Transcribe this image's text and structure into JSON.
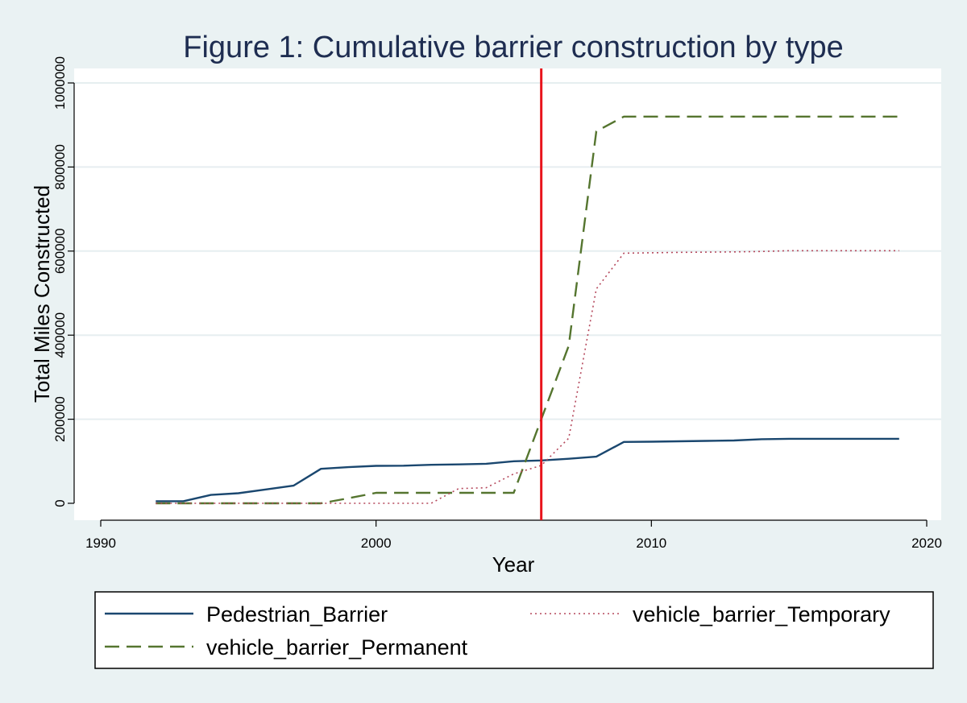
{
  "chart_data": {
    "type": "line",
    "title": "Figure 1: Cumulative barrier construction by type",
    "xlabel": "Year",
    "ylabel": "Total Miles Constructed",
    "xlim": [
      1990,
      2020
    ],
    "ylim": [
      0,
      1000000
    ],
    "x_ticks": [
      1990,
      2000,
      2010,
      2020
    ],
    "y_ticks": [
      0,
      200000,
      400000,
      600000,
      800000,
      1000000
    ],
    "grid": "horizontal",
    "legend_position": "bottom",
    "reference_line": {
      "x": 2006,
      "color": "#e8141c"
    },
    "x": [
      1992,
      1993,
      1994,
      1995,
      1996,
      1997,
      1998,
      1999,
      2000,
      2001,
      2002,
      2003,
      2004,
      2005,
      2006,
      2007,
      2008,
      2009,
      2010,
      2011,
      2012,
      2013,
      2014,
      2015,
      2016,
      2017,
      2018,
      2019
    ],
    "series": [
      {
        "name": "Pedestrian_Barrier",
        "color": "#1a476f",
        "style": "solid",
        "values": [
          5000,
          5000,
          20000,
          24000,
          33000,
          42000,
          82000,
          86000,
          89000,
          89500,
          91500,
          92500,
          94000,
          100000,
          102000,
          106000,
          111000,
          146000,
          146500,
          147500,
          148500,
          149500,
          152500,
          153500,
          153500,
          153500,
          153500,
          153500
        ]
      },
      {
        "name": "vehicle_barrier_Permanent",
        "color": "#55752f",
        "style": "dashed",
        "values": [
          0,
          0,
          0,
          0,
          0,
          0,
          0,
          12000,
          25000,
          25000,
          25000,
          25000,
          25000,
          25000,
          200000,
          375000,
          885000,
          920000,
          920000,
          920000,
          920000,
          920000,
          920000,
          920000,
          920000,
          920000,
          920000,
          920000
        ]
      },
      {
        "name": "vehicle_barrier_Temporary",
        "color": "#b5485c",
        "style": "dotted",
        "values": [
          0,
          0,
          0,
          0,
          0,
          0,
          0,
          0,
          0,
          0,
          0,
          35000,
          37000,
          70000,
          90000,
          155000,
          510000,
          595000,
          596000,
          597000,
          597500,
          598000,
          599000,
          601000,
          601000,
          601000,
          601000,
          601000
        ]
      }
    ]
  }
}
